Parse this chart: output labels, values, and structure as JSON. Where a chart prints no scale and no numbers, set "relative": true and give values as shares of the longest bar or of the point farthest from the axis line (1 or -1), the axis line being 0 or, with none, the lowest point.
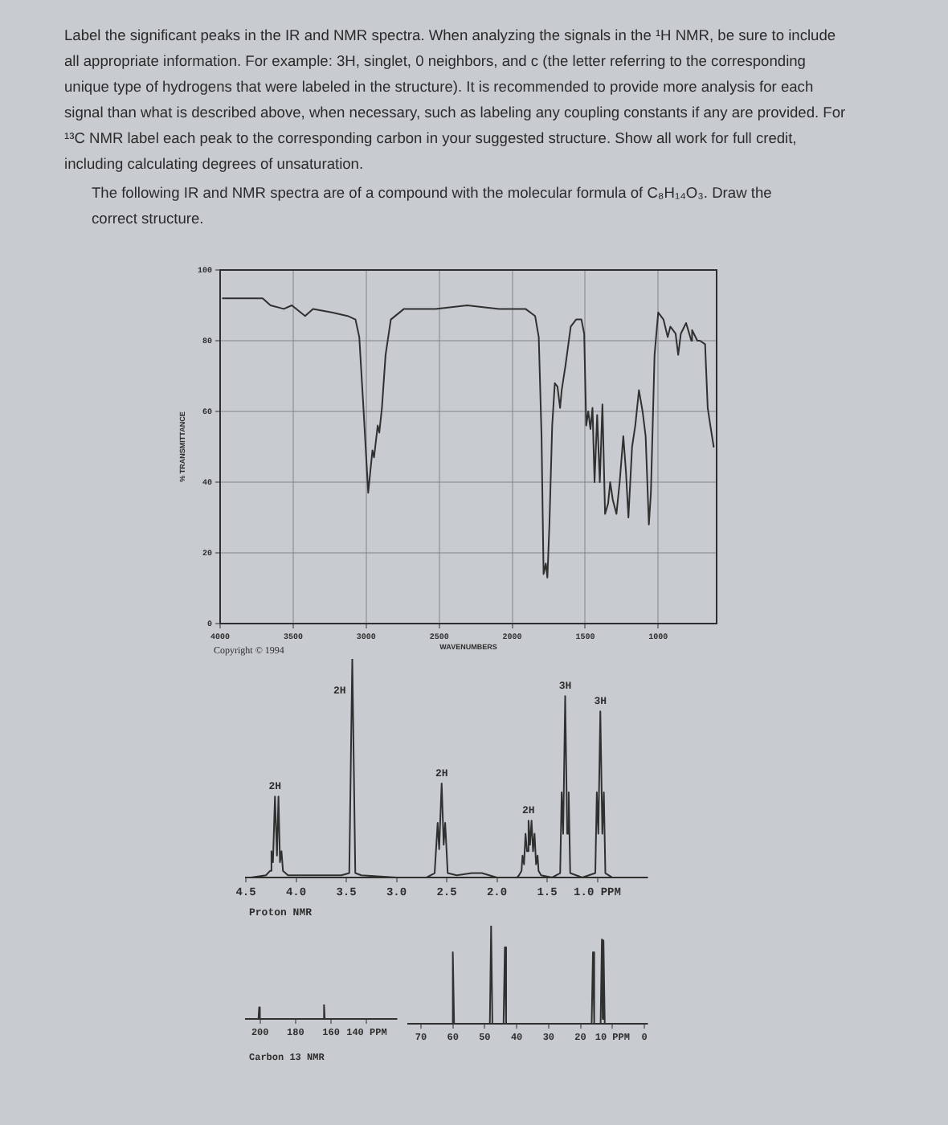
{
  "chart_data": [
    {
      "type": "line",
      "title": "Label the significant peaks in the IR and NMR spectra.  When analyzing the signals in the ¹H NMR, be sure to include all appropriate information.  For example: 3H, singlet, 0 neighbors, and c (the letter referring to the corresponding unique type of hydrogens that were labeled in the structure).  It is recommended to provide more analysis for each signal than what is described above, when necessary, such as labeling any coupling constants if any are provided. For ¹³C NMR label each peak to the corresponding carbon in your suggested structure.  Show all work for full credit, including calculating degrees of unsaturation.",
      "subtitle": "The following IR and NMR spectra are of a compound with the molecular formula of C₈H₁₄O₃.  Draw the correct structure.",
      "xlabel": "WAVENUMBERS",
      "ylabel": "% TRANSMITTANCE",
      "annotations": [
        "Copyright © 1994"
      ],
      "x": [
        3982,
        3709,
        3655,
        3564,
        3509,
        3418,
        3364,
        3236,
        3127,
        3073,
        3047,
        3020,
        2986,
        2957,
        2946,
        2921,
        2910,
        2892,
        2867,
        2831,
        2741,
        2525,
        2308,
        2091,
        1909,
        1843,
        1818,
        1799,
        1785,
        1770,
        1759,
        1745,
        1726,
        1708,
        1690,
        1672,
        1661,
        1635,
        1599,
        1562,
        1526,
        1507,
        1493,
        1479,
        1464,
        1450,
        1436,
        1418,
        1400,
        1382,
        1364,
        1343,
        1329,
        1311,
        1286,
        1264,
        1239,
        1221,
        1204,
        1179,
        1157,
        1132,
        1107,
        1086,
        1064,
        1050,
        1025,
        1000,
        964,
        935,
        917,
        881,
        863,
        845,
        809,
        773,
        768,
        732,
        714,
        679,
        661,
        643,
        620
      ],
      "series": [
        {
          "color": "#303030",
          "values": [
            92,
            92,
            90,
            89,
            90,
            87,
            89,
            88,
            87,
            86,
            81,
            62,
            37,
            49,
            47,
            56,
            54,
            61,
            76,
            86,
            89,
            89,
            90,
            89,
            89,
            87,
            81,
            53,
            14,
            17,
            13,
            28,
            56,
            68,
            67,
            61,
            66,
            73,
            84,
            86,
            86,
            82,
            56,
            60,
            55,
            61,
            40,
            59,
            40,
            62,
            31,
            34,
            40,
            35,
            31,
            40,
            53,
            43,
            30,
            50,
            56,
            66,
            60,
            53,
            28,
            37,
            76,
            88,
            86,
            81,
            84,
            82,
            76,
            82,
            85,
            80,
            83,
            80,
            80,
            79,
            61,
            56,
            50
          ]
        }
      ],
      "xlim": [
        4000,
        600
      ],
      "xticks": [
        4000,
        3500,
        3000,
        2500,
        2000,
        1500,
        1000
      ],
      "ylim": [
        0,
        100
      ],
      "yticks": [
        0,
        20,
        40,
        60,
        80,
        100
      ],
      "grid": true
    },
    {
      "type": "line",
      "xlabel": "Proton NMR",
      "relative": true,
      "annotations": [
        {
          "text": "2H",
          "x": 4.21,
          "y": 0.37
        },
        {
          "text": "2H",
          "x": 3.44,
          "y": 1
        },
        {
          "text": "2H",
          "x": 2.55,
          "y": 0.43
        },
        {
          "text": "2H",
          "x": 1.685,
          "y": 0.26
        },
        {
          "text": "3H",
          "x": 1.32,
          "y": 0.83
        },
        {
          "text": "3H",
          "x": 0.97,
          "y": 0.76
        }
      ],
      "x": [
        4.45,
        4.3,
        4.26,
        4.245,
        4.23,
        4.21,
        4.19,
        4.175,
        4.16,
        4.145,
        4.13,
        4.08,
        3.8,
        3.55,
        3.47,
        3.44,
        3.41,
        3.35,
        3.0,
        2.7,
        2.62,
        2.59,
        2.575,
        2.55,
        2.53,
        2.515,
        2.49,
        2.4,
        2.25,
        2.15,
        2.0,
        1.8,
        1.78,
        1.755,
        1.745,
        1.73,
        1.715,
        1.7,
        1.685,
        1.67,
        1.655,
        1.64,
        1.625,
        1.61,
        1.595,
        1.585,
        1.56,
        1.45,
        1.37,
        1.355,
        1.34,
        1.32,
        1.3,
        1.285,
        1.27,
        1.15,
        1.02,
        1.005,
        0.99,
        0.97,
        0.95,
        0.935,
        0.92,
        0.85,
        0.55
      ],
      "series": [
        {
          "color": "#303030",
          "values": [
            0,
            0.01,
            0.03,
            0.12,
            0.07,
            0.37,
            0.1,
            0.37,
            0.07,
            0.12,
            0.03,
            0.01,
            0.01,
            0.01,
            0.02,
            1,
            0.02,
            0.01,
            0,
            0,
            0.02,
            0.25,
            0.13,
            0.43,
            0.15,
            0.25,
            0.02,
            0.01,
            0.02,
            0.02,
            0,
            0,
            0.01,
            0.03,
            0.1,
            0.06,
            0.2,
            0.12,
            0.26,
            0.15,
            0.26,
            0.12,
            0.2,
            0.06,
            0.1,
            0.03,
            0.01,
            0,
            0.02,
            0.39,
            0.2,
            0.83,
            0.2,
            0.39,
            0.02,
            0,
            0.02,
            0.39,
            0.2,
            0.76,
            0.2,
            0.39,
            0.02,
            0,
            0
          ]
        }
      ],
      "xlim": [
        4.5,
        0.5
      ],
      "xticks": [
        4.5,
        {
          "value": 4,
          "label": "4.0"
        },
        3.5,
        {
          "value": 3,
          "label": "3.0"
        },
        2.5,
        {
          "value": 2,
          "label": "2.0"
        },
        1.5,
        {
          "value": 1,
          "label": "1.0 PPM"
        }
      ]
    },
    {
      "type": "line",
      "xlabel": "Carbon 13 NMR",
      "relative": true,
      "x": [
        208,
        200.9,
        200.5,
        200.1,
        164.4,
        164,
        163.6,
        123
      ],
      "series": [
        {
          "color": "#303030",
          "values": [
            0,
            0,
            0.8,
            0,
            0,
            1,
            0,
            0
          ]
        }
      ],
      "xlim": [
        208,
        123
      ],
      "xticks": [
        200,
        180,
        160,
        {
          "value": 140,
          "label": "140 PPM"
        }
      ]
    },
    {
      "type": "line",
      "relative": true,
      "x": [
        74,
        60.4,
        60,
        59.6,
        48.4,
        48,
        47.6,
        44.1,
        43.7,
        43.3,
        16.5,
        16.1,
        15.7,
        13.7,
        13.3,
        13.05,
        12.8,
        12.4,
        -1
      ],
      "series": [
        {
          "color": "#303030",
          "values": [
            0,
            0,
            0.73,
            0,
            0,
            1,
            0,
            0,
            0.78,
            0,
            0,
            0.73,
            0,
            0,
            0.86,
            0.05,
            0.85,
            0,
            0
          ]
        }
      ],
      "xlim": [
        74,
        -1
      ],
      "xticks": [
        70,
        60,
        50,
        40,
        30,
        20,
        {
          "value": 10,
          "label": "10 PPM"
        },
        0
      ]
    }
  ]
}
